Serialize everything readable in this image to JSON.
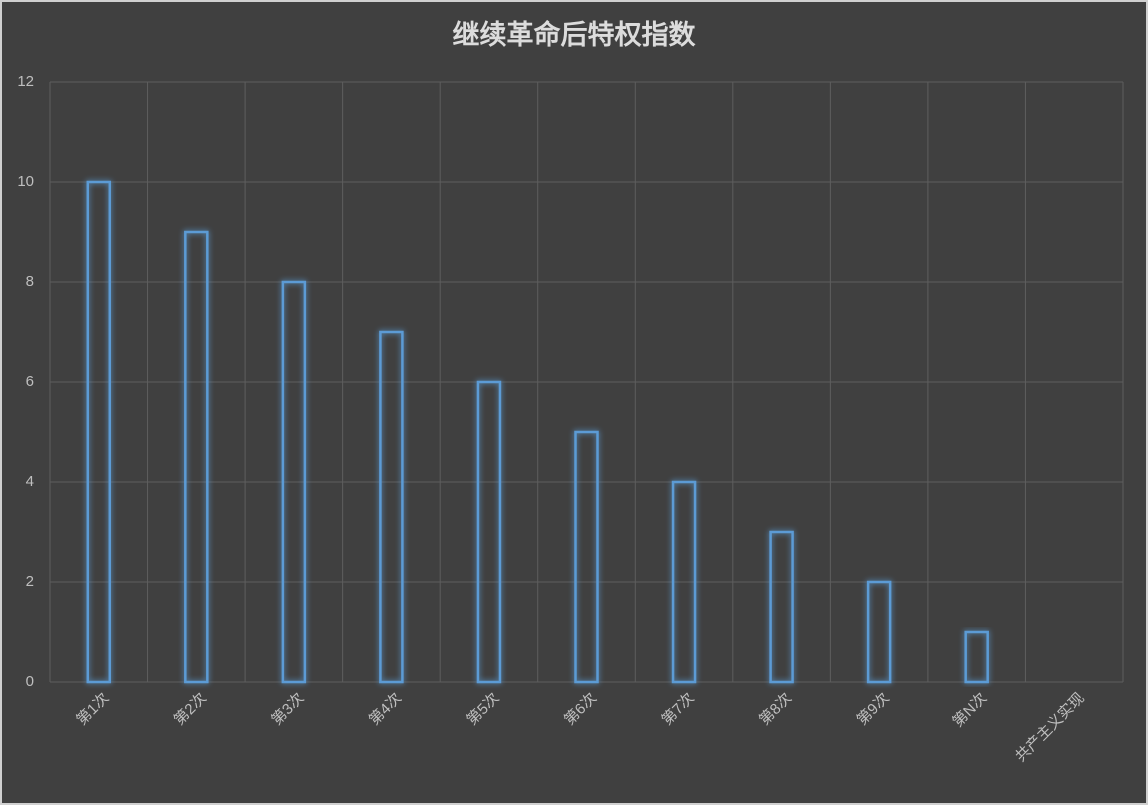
{
  "chart_data": {
    "type": "bar",
    "title": "继续革命后特权指数",
    "categories": [
      "第1次",
      "第2次",
      "第3次",
      "第4次",
      "第5次",
      "第6次",
      "第7次",
      "第8次",
      "第9次",
      "第N次",
      "共产主义实现"
    ],
    "values": [
      10,
      9,
      8,
      7,
      6,
      5,
      4,
      3,
      2,
      1,
      null
    ],
    "color": "#5b9bd5",
    "ylim": [
      0,
      12
    ],
    "yticks": [
      0,
      2,
      4,
      6,
      8,
      10,
      12
    ],
    "grid": true
  }
}
